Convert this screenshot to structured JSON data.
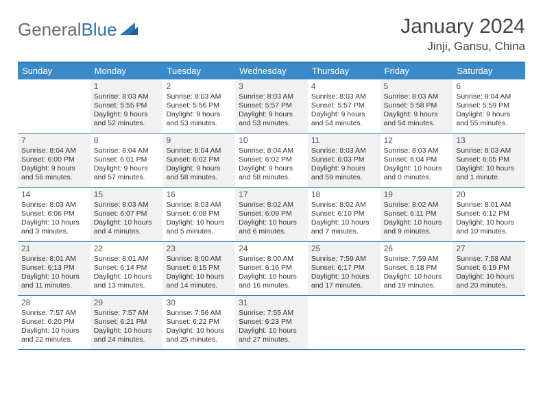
{
  "logo": {
    "text1": "General",
    "text2": "Blue"
  },
  "title": "January 2024",
  "location": "Jinji, Gansu, China",
  "colors": {
    "headerBg": "#3a8ac9",
    "border": "#2e75b6",
    "shaded": "#f1f1f1",
    "text": "#333333"
  },
  "dayHeaders": [
    "Sunday",
    "Monday",
    "Tuesday",
    "Wednesday",
    "Thursday",
    "Friday",
    "Saturday"
  ],
  "weeks": [
    [
      {
        "n": "",
        "shaded": false,
        "lines": []
      },
      {
        "n": "1",
        "shaded": true,
        "lines": [
          "Sunrise: 8:03 AM",
          "Sunset: 5:55 PM",
          "Daylight: 9 hours",
          "and 52 minutes."
        ]
      },
      {
        "n": "2",
        "shaded": false,
        "lines": [
          "Sunrise: 8:03 AM",
          "Sunset: 5:56 PM",
          "Daylight: 9 hours",
          "and 53 minutes."
        ]
      },
      {
        "n": "3",
        "shaded": true,
        "lines": [
          "Sunrise: 8:03 AM",
          "Sunset: 5:57 PM",
          "Daylight: 9 hours",
          "and 53 minutes."
        ]
      },
      {
        "n": "4",
        "shaded": false,
        "lines": [
          "Sunrise: 8:03 AM",
          "Sunset: 5:57 PM",
          "Daylight: 9 hours",
          "and 54 minutes."
        ]
      },
      {
        "n": "5",
        "shaded": true,
        "lines": [
          "Sunrise: 8:03 AM",
          "Sunset: 5:58 PM",
          "Daylight: 9 hours",
          "and 54 minutes."
        ]
      },
      {
        "n": "6",
        "shaded": false,
        "lines": [
          "Sunrise: 8:04 AM",
          "Sunset: 5:59 PM",
          "Daylight: 9 hours",
          "and 55 minutes."
        ]
      }
    ],
    [
      {
        "n": "7",
        "shaded": true,
        "lines": [
          "Sunrise: 8:04 AM",
          "Sunset: 6:00 PM",
          "Daylight: 9 hours",
          "and 56 minutes."
        ]
      },
      {
        "n": "8",
        "shaded": false,
        "lines": [
          "Sunrise: 8:04 AM",
          "Sunset: 6:01 PM",
          "Daylight: 9 hours",
          "and 57 minutes."
        ]
      },
      {
        "n": "9",
        "shaded": true,
        "lines": [
          "Sunrise: 8:04 AM",
          "Sunset: 6:02 PM",
          "Daylight: 9 hours",
          "and 58 minutes."
        ]
      },
      {
        "n": "10",
        "shaded": false,
        "lines": [
          "Sunrise: 8:04 AM",
          "Sunset: 6:02 PM",
          "Daylight: 9 hours",
          "and 58 minutes."
        ]
      },
      {
        "n": "11",
        "shaded": true,
        "lines": [
          "Sunrise: 8:03 AM",
          "Sunset: 6:03 PM",
          "Daylight: 9 hours",
          "and 59 minutes."
        ]
      },
      {
        "n": "12",
        "shaded": false,
        "lines": [
          "Sunrise: 8:03 AM",
          "Sunset: 6:04 PM",
          "Daylight: 10 hours",
          "and 0 minutes."
        ]
      },
      {
        "n": "13",
        "shaded": true,
        "lines": [
          "Sunrise: 8:03 AM",
          "Sunset: 6:05 PM",
          "Daylight: 10 hours",
          "and 1 minute."
        ]
      }
    ],
    [
      {
        "n": "14",
        "shaded": false,
        "lines": [
          "Sunrise: 8:03 AM",
          "Sunset: 6:06 PM",
          "Daylight: 10 hours",
          "and 3 minutes."
        ]
      },
      {
        "n": "15",
        "shaded": true,
        "lines": [
          "Sunrise: 8:03 AM",
          "Sunset: 6:07 PM",
          "Daylight: 10 hours",
          "and 4 minutes."
        ]
      },
      {
        "n": "16",
        "shaded": false,
        "lines": [
          "Sunrise: 8:03 AM",
          "Sunset: 6:08 PM",
          "Daylight: 10 hours",
          "and 5 minutes."
        ]
      },
      {
        "n": "17",
        "shaded": true,
        "lines": [
          "Sunrise: 8:02 AM",
          "Sunset: 6:09 PM",
          "Daylight: 10 hours",
          "and 6 minutes."
        ]
      },
      {
        "n": "18",
        "shaded": false,
        "lines": [
          "Sunrise: 8:02 AM",
          "Sunset: 6:10 PM",
          "Daylight: 10 hours",
          "and 7 minutes."
        ]
      },
      {
        "n": "19",
        "shaded": true,
        "lines": [
          "Sunrise: 8:02 AM",
          "Sunset: 6:11 PM",
          "Daylight: 10 hours",
          "and 9 minutes."
        ]
      },
      {
        "n": "20",
        "shaded": false,
        "lines": [
          "Sunrise: 8:01 AM",
          "Sunset: 6:12 PM",
          "Daylight: 10 hours",
          "and 10 minutes."
        ]
      }
    ],
    [
      {
        "n": "21",
        "shaded": true,
        "lines": [
          "Sunrise: 8:01 AM",
          "Sunset: 6:13 PM",
          "Daylight: 10 hours",
          "and 11 minutes."
        ]
      },
      {
        "n": "22",
        "shaded": false,
        "lines": [
          "Sunrise: 8:01 AM",
          "Sunset: 6:14 PM",
          "Daylight: 10 hours",
          "and 13 minutes."
        ]
      },
      {
        "n": "23",
        "shaded": true,
        "lines": [
          "Sunrise: 8:00 AM",
          "Sunset: 6:15 PM",
          "Daylight: 10 hours",
          "and 14 minutes."
        ]
      },
      {
        "n": "24",
        "shaded": false,
        "lines": [
          "Sunrise: 8:00 AM",
          "Sunset: 6:16 PM",
          "Daylight: 10 hours",
          "and 16 minutes."
        ]
      },
      {
        "n": "25",
        "shaded": true,
        "lines": [
          "Sunrise: 7:59 AM",
          "Sunset: 6:17 PM",
          "Daylight: 10 hours",
          "and 17 minutes."
        ]
      },
      {
        "n": "26",
        "shaded": false,
        "lines": [
          "Sunrise: 7:59 AM",
          "Sunset: 6:18 PM",
          "Daylight: 10 hours",
          "and 19 minutes."
        ]
      },
      {
        "n": "27",
        "shaded": true,
        "lines": [
          "Sunrise: 7:58 AM",
          "Sunset: 6:19 PM",
          "Daylight: 10 hours",
          "and 20 minutes."
        ]
      }
    ],
    [
      {
        "n": "28",
        "shaded": false,
        "lines": [
          "Sunrise: 7:57 AM",
          "Sunset: 6:20 PM",
          "Daylight: 10 hours",
          "and 22 minutes."
        ]
      },
      {
        "n": "29",
        "shaded": true,
        "lines": [
          "Sunrise: 7:57 AM",
          "Sunset: 6:21 PM",
          "Daylight: 10 hours",
          "and 24 minutes."
        ]
      },
      {
        "n": "30",
        "shaded": false,
        "lines": [
          "Sunrise: 7:56 AM",
          "Sunset: 6:22 PM",
          "Daylight: 10 hours",
          "and 25 minutes."
        ]
      },
      {
        "n": "31",
        "shaded": true,
        "lines": [
          "Sunrise: 7:55 AM",
          "Sunset: 6:23 PM",
          "Daylight: 10 hours",
          "and 27 minutes."
        ]
      },
      {
        "n": "",
        "shaded": false,
        "lines": []
      },
      {
        "n": "",
        "shaded": false,
        "lines": []
      },
      {
        "n": "",
        "shaded": false,
        "lines": []
      }
    ]
  ]
}
